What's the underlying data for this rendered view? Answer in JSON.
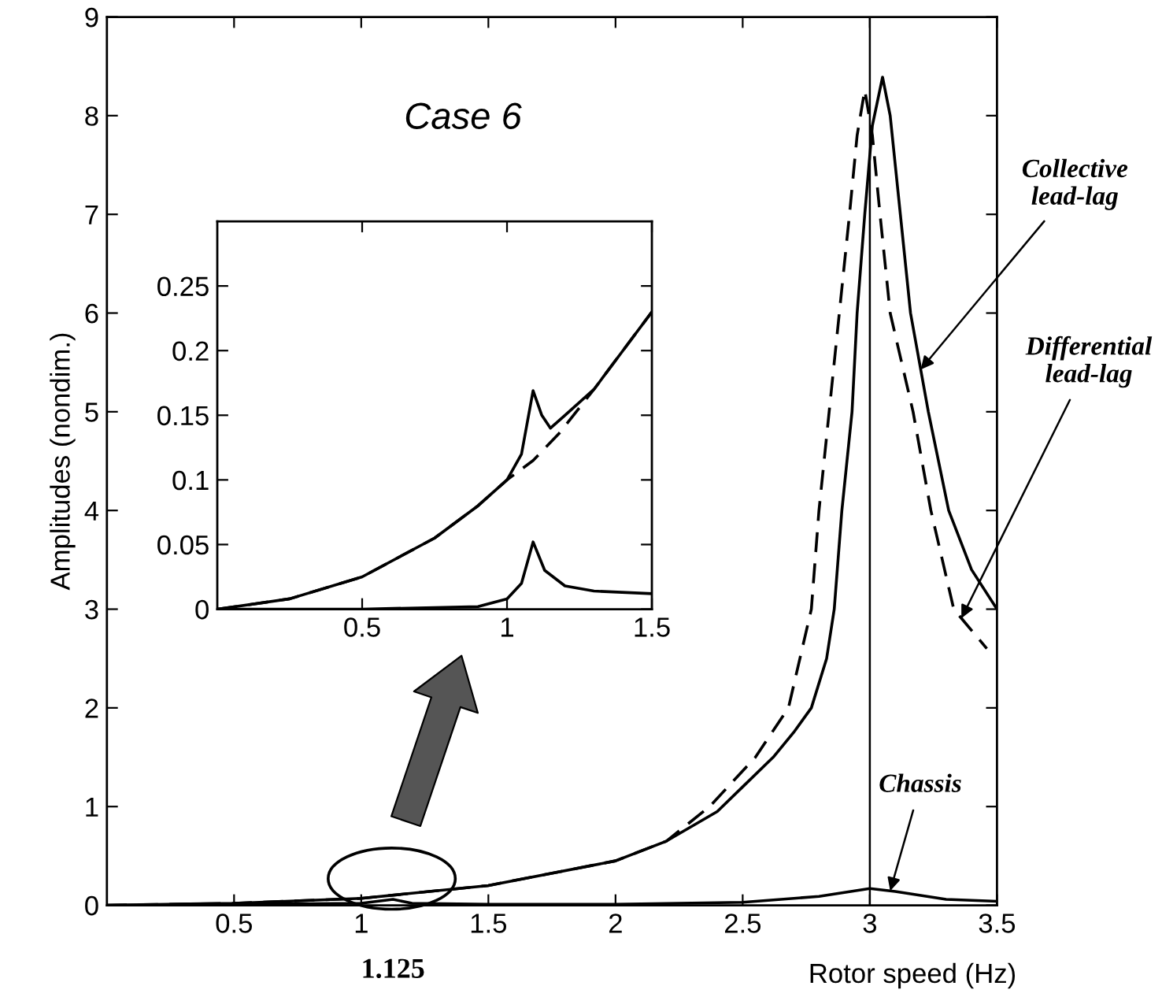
{
  "chart_data": [
    {
      "type": "line",
      "title": "Case 6",
      "xlabel": "Rotor speed (Hz)",
      "ylabel": "Amplitudes (nondim.)",
      "xlim": [
        0,
        3.5
      ],
      "ylim": [
        0,
        9
      ],
      "xticks": [
        0.5,
        1,
        1.5,
        2,
        2.5,
        3,
        3.5
      ],
      "yticks": [
        0,
        1,
        2,
        3,
        4,
        5,
        6,
        7,
        8,
        9
      ],
      "grid": false,
      "legend": false,
      "series": [
        {
          "name": "Collective lead-lag",
          "color": "#000000",
          "line_style": "solid",
          "x": [
            0,
            0.5,
            1,
            1.5,
            2,
            2.2,
            2.4,
            2.5,
            2.62,
            2.7,
            2.77,
            2.83,
            2.86,
            2.89,
            2.93,
            2.95,
            2.98,
            3.01,
            3.05,
            3.08,
            3.12,
            3.16,
            3.23,
            3.31,
            3.4,
            3.5
          ],
          "values": [
            0,
            0.02,
            0.07,
            0.2,
            0.45,
            0.65,
            0.95,
            1.2,
            1.5,
            1.75,
            2.0,
            2.5,
            3.0,
            4.0,
            5.0,
            6.0,
            7.0,
            7.9,
            8.39,
            8.0,
            7.0,
            6.0,
            5.0,
            4.0,
            3.4,
            3.0
          ]
        },
        {
          "name": "Differential lead-lag",
          "color": "#000000",
          "line_style": "dashed",
          "x": [
            0,
            0.5,
            1,
            1.5,
            2,
            2.2,
            2.37,
            2.55,
            2.68,
            2.77,
            2.8,
            2.84,
            2.88,
            2.92,
            2.95,
            2.98,
            3.01,
            3.04,
            3.08,
            3.17,
            3.24,
            3.33,
            3.46
          ],
          "values": [
            0,
            0.02,
            0.07,
            0.2,
            0.45,
            0.65,
            1.0,
            1.5,
            2.0,
            3.0,
            4.0,
            5.0,
            6.0,
            7.0,
            7.8,
            8.26,
            7.8,
            7.0,
            6.0,
            5.0,
            4.0,
            3.0,
            2.6
          ]
        },
        {
          "name": "Chassis",
          "color": "#000000",
          "line_style": "solid",
          "x": [
            0,
            0.5,
            1,
            1.125,
            1.2,
            1.5,
            2,
            2.5,
            2.8,
            3,
            3.1,
            3.3,
            3.5
          ],
          "values": [
            0,
            0.01,
            0.02,
            0.06,
            0.02,
            0.01,
            0.01,
            0.03,
            0.09,
            0.17,
            0.14,
            0.06,
            0.04
          ]
        }
      ],
      "ref_lines": [
        {
          "axis": "x",
          "value": 3,
          "color": "#000000"
        }
      ],
      "annotations": [
        {
          "text": "1.125",
          "x": 1.125,
          "y": 0
        }
      ]
    },
    {
      "type": "line",
      "xlim": [
        0,
        1.5
      ],
      "ylim": [
        0,
        0.3
      ],
      "xticks": [
        0.5,
        1,
        1.5
      ],
      "yticks": [
        0,
        0.05,
        0.1,
        0.15,
        0.2,
        0.25
      ],
      "grid": false,
      "legend": false,
      "series": [
        {
          "color": "#000000",
          "line_style": "solid",
          "x": [
            0,
            0.25,
            0.5,
            0.75,
            0.9,
            1.0,
            1.05,
            1.09,
            1.12,
            1.15,
            1.2,
            1.3,
            1.4,
            1.5
          ],
          "values": [
            0,
            0.008,
            0.025,
            0.055,
            0.08,
            0.1,
            0.12,
            0.169,
            0.15,
            0.14,
            0.15,
            0.17,
            0.2,
            0.23
          ]
        },
        {
          "color": "#000000",
          "line_style": "dashed",
          "x": [
            0,
            0.25,
            0.5,
            0.75,
            0.9,
            1.0,
            1.09,
            1.18,
            1.3,
            1.4,
            1.5
          ],
          "values": [
            0,
            0.008,
            0.025,
            0.055,
            0.08,
            0.1,
            0.115,
            0.136,
            0.17,
            0.2,
            0.23
          ]
        },
        {
          "color": "#000000",
          "line_style": "solid",
          "x": [
            0,
            0.5,
            0.9,
            1.0,
            1.05,
            1.09,
            1.13,
            1.2,
            1.3,
            1.5
          ],
          "values": [
            0,
            0,
            0.002,
            0.008,
            0.02,
            0.052,
            0.03,
            0.018,
            0.014,
            0.012
          ]
        }
      ]
    }
  ]
}
